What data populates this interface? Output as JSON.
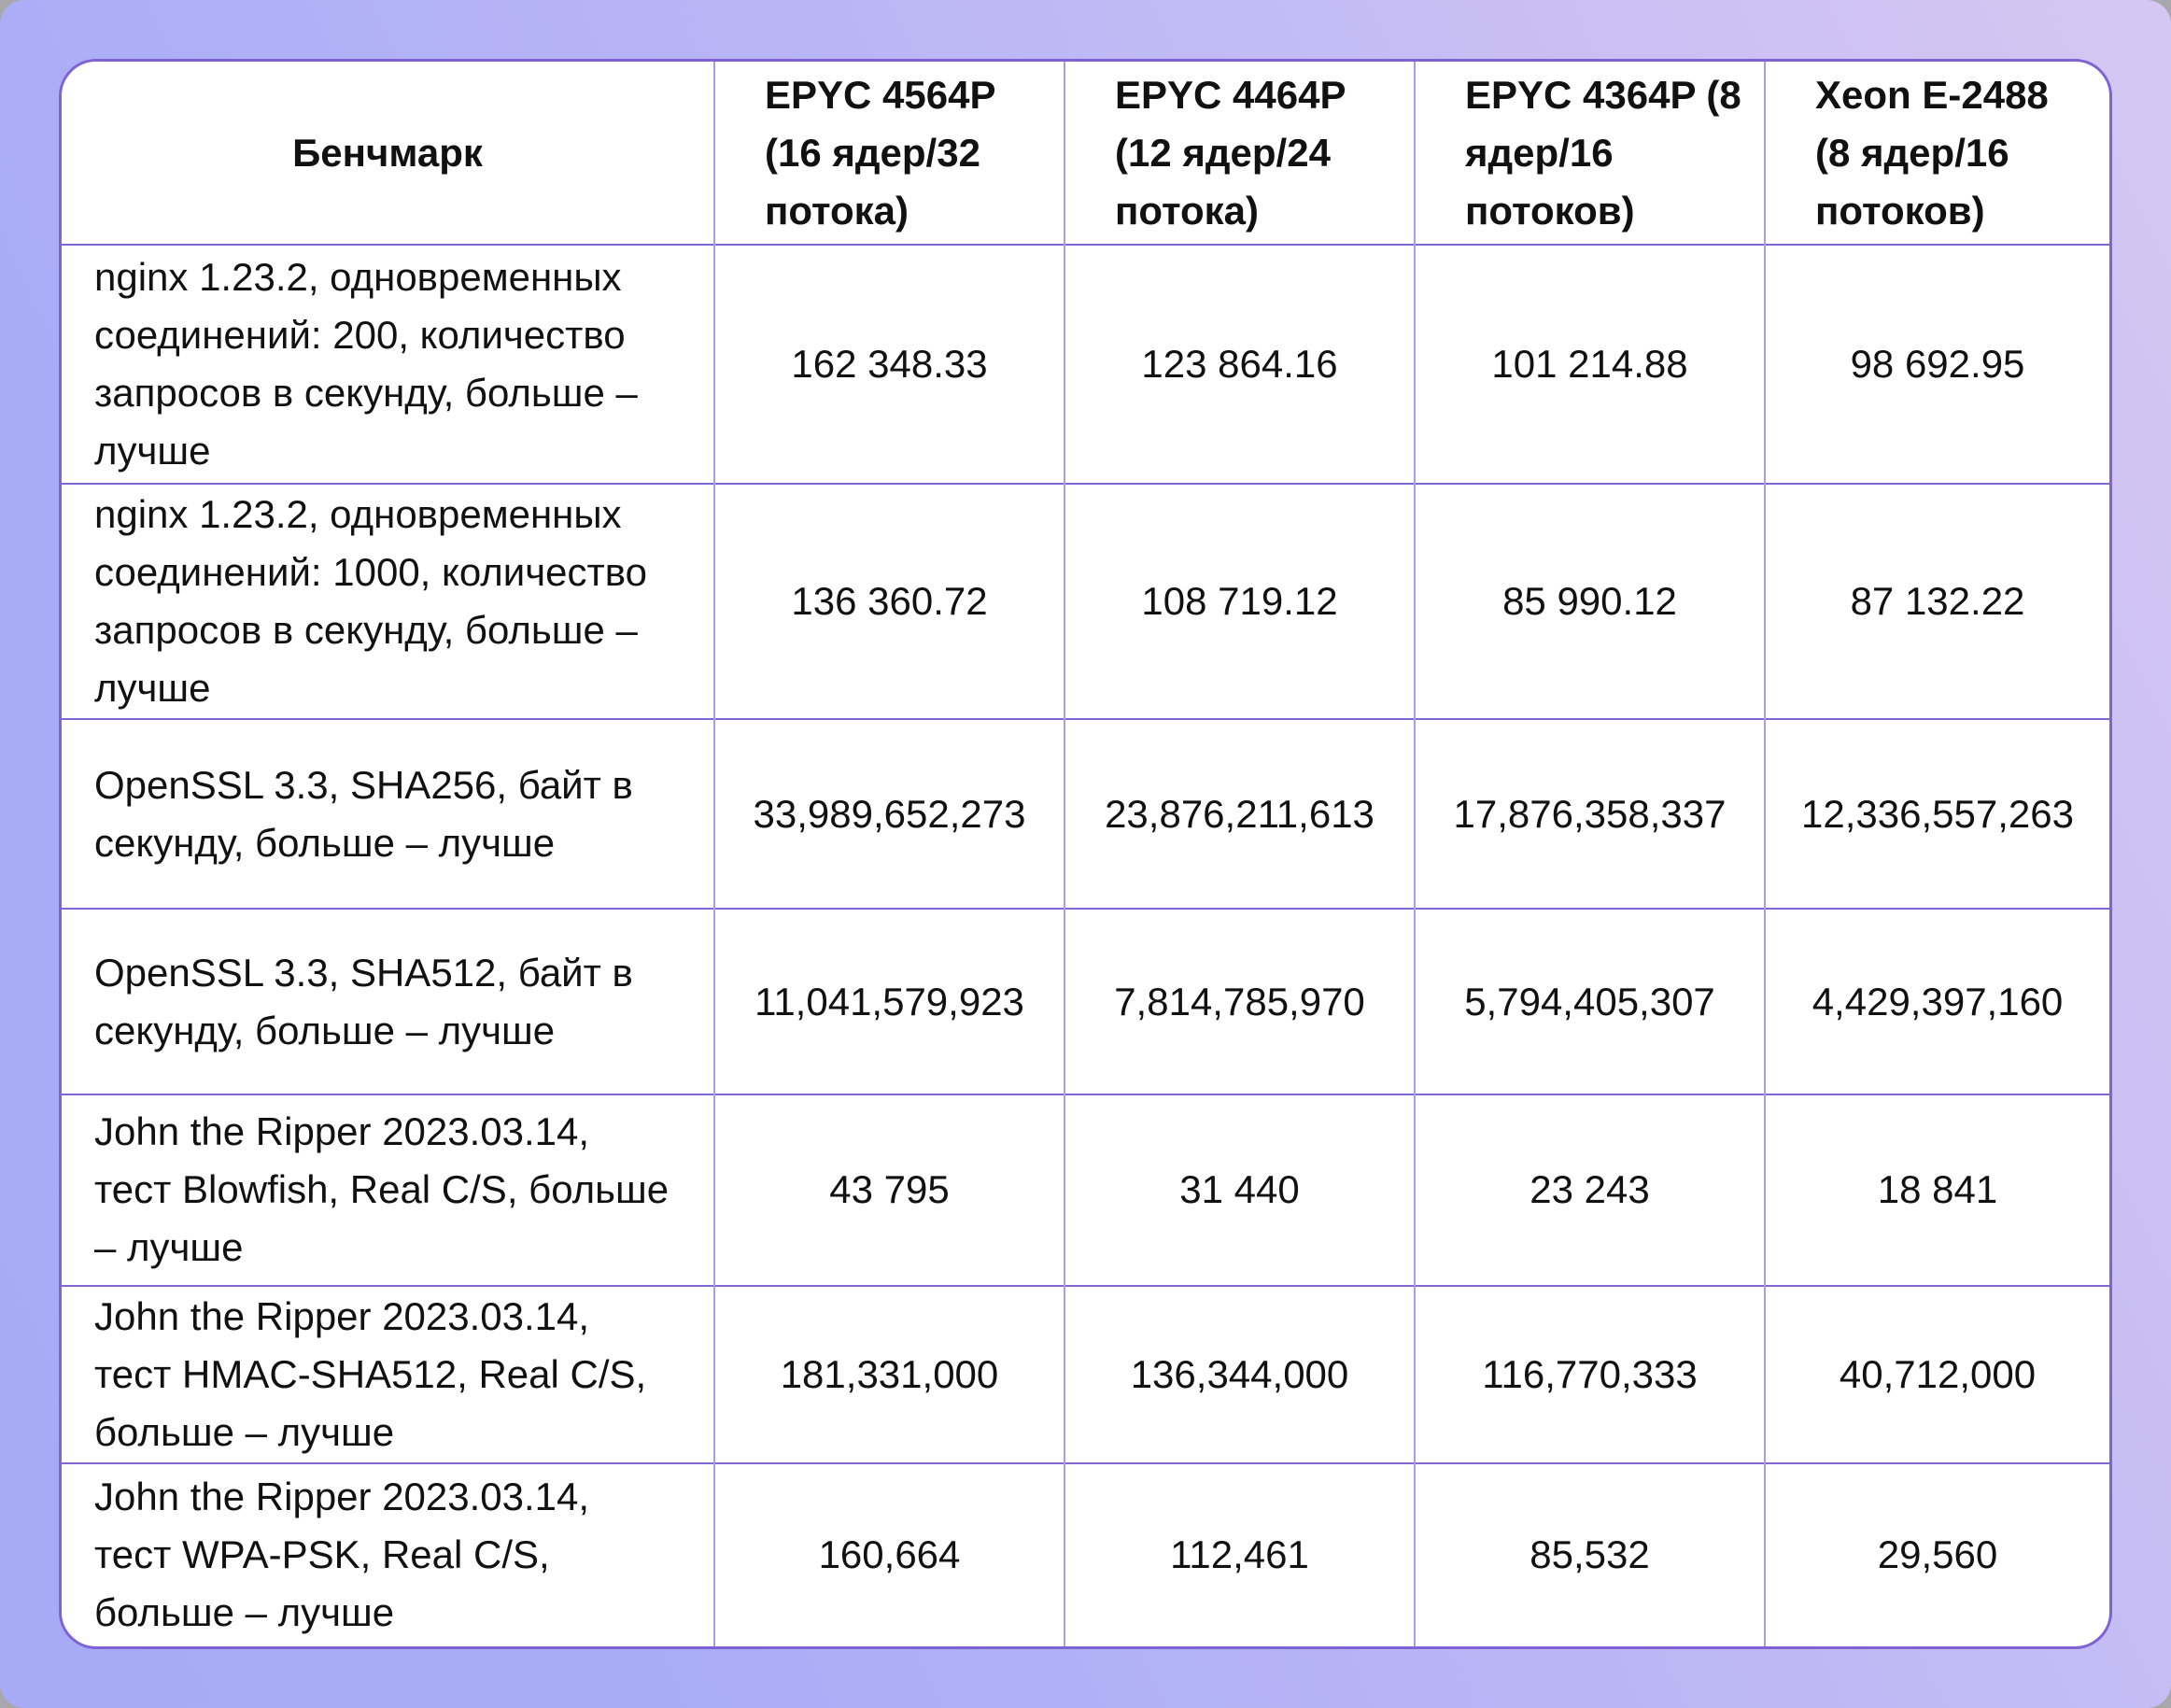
{
  "table": {
    "header": {
      "benchmark_label": "Бенчмарк",
      "columns": [
        "EPYC 4564P (16 ядер/32 потока)",
        "EPYC 4464P (12 ядер/24 потока)",
        "EPYC 4364P (8 ядер/16 потоков)",
        "Xeon E-2488 (8 ядер/16 потоков)"
      ]
    },
    "rows": [
      {
        "label": "nginx 1.23.2, одновременных соединений: 200, количество запросов в секунду, больше – лучше",
        "values": [
          "162 348.33",
          "123 864.16",
          "101 214.88",
          "98 692.95"
        ]
      },
      {
        "label": "nginx 1.23.2, одновременных соединений: 1000, количество запросов в секунду, больше – лучше",
        "values": [
          "136 360.72",
          "108 719.12",
          "85 990.12",
          "87 132.22"
        ]
      },
      {
        "label": "OpenSSL 3.3, SHA256, байт в секунду, больше – лучше",
        "values": [
          "33,989,652,273",
          "23,876,211,613",
          "17,876,358,337",
          "12,336,557,263"
        ]
      },
      {
        "label": "OpenSSL 3.3, SHA512, байт в секунду, больше – лучше",
        "values": [
          "11,041,579,923",
          "7,814,785,970",
          "5,794,405,307",
          "4,429,397,160"
        ]
      },
      {
        "label": "John the Ripper 2023.03.14, тест Blowfish, Real C/S, больше – лучше",
        "values": [
          "43 795",
          "31 440",
          "23 243",
          "18 841"
        ]
      },
      {
        "label": "John the Ripper 2023.03.14, тест HMAC-SHA512, Real C/S, больше – лучше",
        "values": [
          "181,331,000",
          "136,344,000",
          "116,770,333",
          "40,712,000"
        ]
      },
      {
        "label": "John the Ripper 2023.03.14, тест WPA-PSK, Real C/S, больше – лучше",
        "values": [
          "160,664",
          "112,461",
          "85,532",
          "29,560"
        ]
      }
    ]
  },
  "colors": {
    "background_gradient_light": "#d6c7f2",
    "background_gradient_dark": "#a8acf6",
    "card_background": "#ffffff",
    "card_border": "#7f63d5",
    "grid_line_horizontal": "#8166d8",
    "grid_line_vertical": "#a89cf0",
    "text": "#111111"
  }
}
